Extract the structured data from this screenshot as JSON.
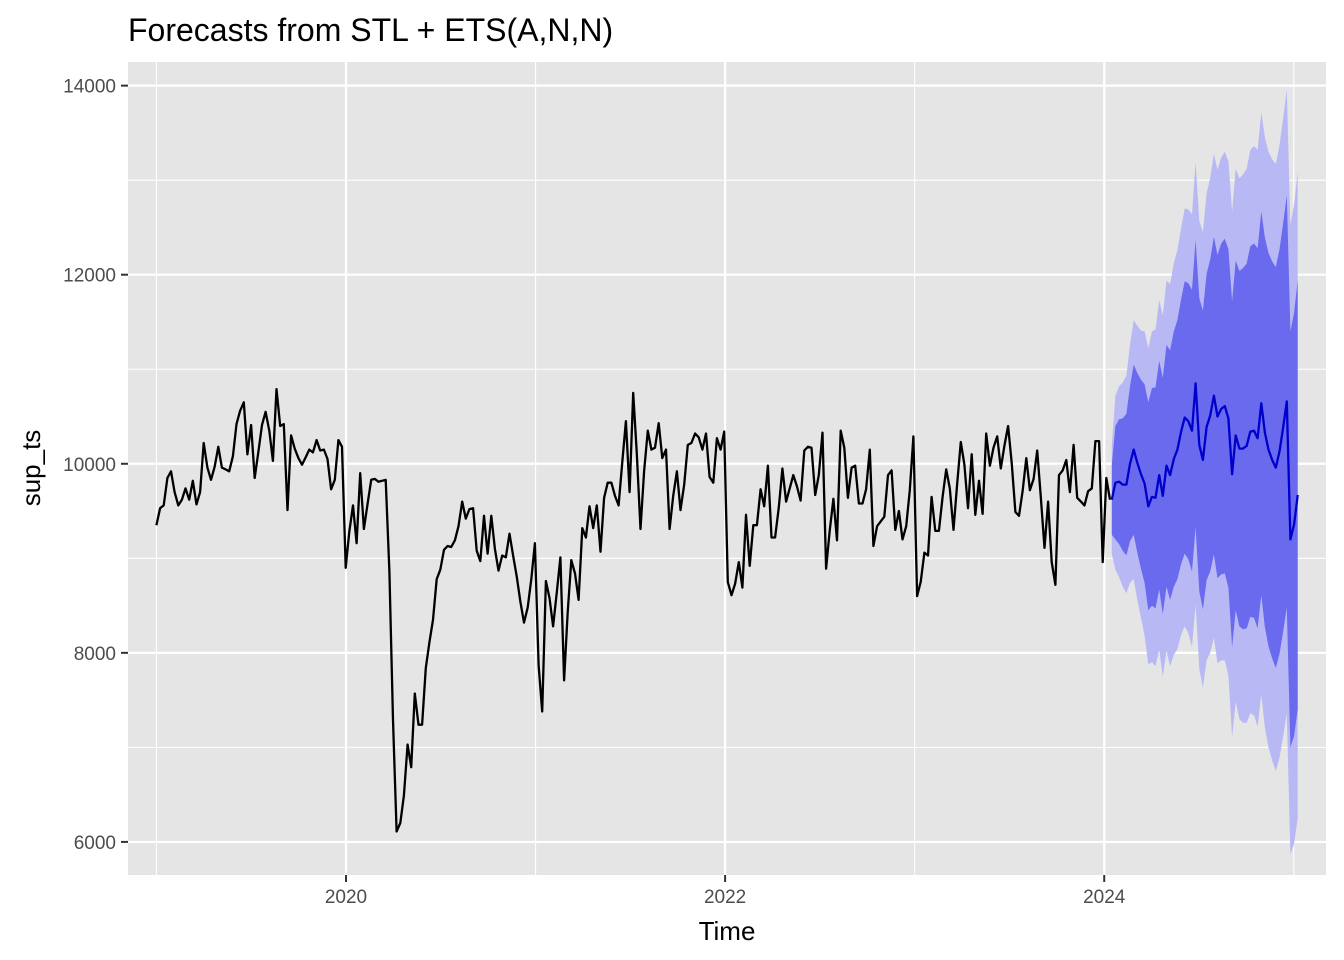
{
  "chart_data": {
    "type": "line",
    "title": "Forecasts from STL +  ETS(A,N,N)",
    "xlabel": "Time",
    "ylabel": "sup_ts",
    "xlim": [
      2018.85,
      2025.17
    ],
    "ylim": [
      5650,
      14250
    ],
    "x_ticks": [
      2020,
      2022,
      2024
    ],
    "x_tick_labels": [
      "2020",
      "2022",
      "2024"
    ],
    "x_minor": [
      2019,
      2021,
      2023,
      2025
    ],
    "y_ticks": [
      6000,
      8000,
      10000,
      12000,
      14000
    ],
    "y_tick_labels": [
      "6000",
      "8000",
      "10000",
      "12000",
      "14000"
    ],
    "y_minor": [
      7000,
      9000,
      11000,
      13000
    ],
    "grid": true,
    "colors": {
      "panel": "#e5e5e5",
      "grid": "#ffffff",
      "history": "#000000",
      "forecast": "#0000cc",
      "band80": "#6a6aee",
      "band95": "#b8b8f5"
    },
    "history": {
      "name": "observed",
      "start": 2019.0,
      "step": 0.0192,
      "values": [
        9350,
        9530,
        9560,
        9850,
        9920,
        9700,
        9560,
        9620,
        9740,
        9620,
        9820,
        9570,
        9700,
        10220,
        9960,
        9830,
        9970,
        10180,
        9960,
        9940,
        9920,
        10080,
        10420,
        10560,
        10650,
        10100,
        10410,
        9850,
        10120,
        10410,
        10550,
        10350,
        10030,
        10790,
        10400,
        10420,
        9510,
        10300,
        10160,
        10060,
        9990,
        10070,
        10150,
        10120,
        10250,
        10140,
        10150,
        10050,
        9730,
        9830,
        10250,
        10180,
        8900,
        9280,
        9560,
        9160,
        9900,
        9310,
        9570,
        9830,
        9840,
        9810,
        9820,
        9830,
        8860,
        7290,
        6110,
        6200,
        6490,
        7030,
        6790,
        7570,
        7240,
        7240,
        7840,
        8110,
        8350,
        8780,
        8880,
        9090,
        9130,
        9120,
        9190,
        9340,
        9600,
        9420,
        9520,
        9530,
        9080,
        8970,
        9450,
        9050,
        9450,
        9100,
        8870,
        9030,
        9010,
        9260,
        9030,
        8810,
        8540,
        8320,
        8480,
        8780,
        9160,
        7870,
        7380,
        8760,
        8580,
        8280,
        8640,
        9010,
        7710,
        8430,
        8980,
        8840,
        8560,
        9320,
        9220,
        9550,
        9320,
        9560,
        9070,
        9640,
        9800,
        9800,
        9660,
        9560,
        10020,
        10450,
        9700,
        10750,
        10110,
        9310,
        9920,
        10350,
        10150,
        10170,
        10430,
        10060,
        10150,
        9310,
        9660,
        9920,
        9510,
        9780,
        10200,
        10220,
        10320,
        10280,
        10150,
        10320,
        9860,
        9800,
        10270,
        10150,
        10340,
        8750,
        8610,
        8730,
        8960,
        8690,
        9460,
        8920,
        9350,
        9350,
        9730,
        9550,
        9980,
        9220,
        9220,
        9540,
        9950,
        9600,
        9740,
        9880,
        9760,
        9610,
        10140,
        10180,
        10170,
        9670,
        9880,
        10330,
        8890,
        9290,
        9630,
        9190,
        10350,
        10170,
        9640,
        9960,
        9980,
        9580,
        9580,
        9730,
        10150,
        9130,
        9340,
        9390,
        9440,
        9880,
        9930,
        9300,
        9500,
        9200,
        9340,
        9720,
        10290,
        8600,
        8750,
        9060,
        9030,
        9650,
        9290,
        9290,
        9650,
        9940,
        9740,
        9300,
        9780,
        10230,
        9990,
        9530,
        10100,
        9460,
        9820,
        9470,
        10320,
        9980,
        10170,
        10290,
        9950,
        10190,
        10400,
        10010,
        9490,
        9450,
        9710,
        10060,
        9720,
        9840,
        10140,
        9650,
        9110,
        9600,
        8960,
        8720,
        9880,
        9930,
        10040,
        9700,
        10200,
        9640,
        9600,
        9560,
        9710,
        9740,
        10240,
        10240,
        8960,
        9850,
        9620
      ]
    },
    "forecast": {
      "name": "forecast",
      "start": 2024.04,
      "step": 0.01923,
      "mean": [
        9620,
        9800,
        9810,
        9780,
        9780,
        10000,
        10150,
        10010,
        9890,
        9790,
        9550,
        9650,
        9640,
        9880,
        9660,
        9980,
        9880,
        10050,
        10150,
        10340,
        10490,
        10450,
        10350,
        10850,
        10200,
        10040,
        10390,
        10510,
        10720,
        10500,
        10580,
        10610,
        10480,
        9890,
        10300,
        10160,
        10160,
        10190,
        10340,
        10350,
        10270,
        10640,
        10330,
        10150,
        10040,
        9960,
        10130,
        10380,
        10660,
        9200,
        9360,
        9670
      ],
      "lo80": [
        9250,
        9200,
        9150,
        9080,
        9030,
        9180,
        9250,
        9060,
        8890,
        8740,
        8450,
        8500,
        8470,
        8670,
        8410,
        8700,
        8560,
        8700,
        8780,
        8940,
        9050,
        8990,
        8860,
        9330,
        8650,
        8460,
        8770,
        8860,
        9040,
        8790,
        8830,
        8840,
        8690,
        8060,
        8450,
        8280,
        8250,
        8260,
        8380,
        8370,
        8260,
        8610,
        8270,
        8070,
        7940,
        7840,
        7990,
        8220,
        8480,
        7000,
        7120,
        7400
      ],
      "hi80": [
        9990,
        10400,
        10470,
        10480,
        10530,
        10820,
        11050,
        10960,
        10890,
        10840,
        10650,
        10800,
        10810,
        11090,
        10910,
        11260,
        11200,
        11400,
        11520,
        11740,
        11930,
        11910,
        11840,
        12370,
        11750,
        11620,
        12010,
        12160,
        12400,
        12210,
        12330,
        12380,
        12270,
        11720,
        12150,
        12040,
        12070,
        12120,
        12300,
        12330,
        12280,
        12670,
        12390,
        12230,
        12140,
        12080,
        12270,
        12540,
        12840,
        11400,
        11600,
        11940
      ],
      "lo95": [
        9050,
        8880,
        8800,
        8700,
        8630,
        8740,
        8780,
        8560,
        8370,
        8180,
        7880,
        7900,
        7860,
        8030,
        7750,
        8020,
        7860,
        7980,
        8040,
        8190,
        8280,
        8210,
        8060,
        8510,
        7830,
        7630,
        7920,
        8000,
        8160,
        7890,
        7920,
        7920,
        7760,
        7110,
        7480,
        7300,
        7260,
        7260,
        7360,
        7340,
        7220,
        7560,
        7210,
        7000,
        6860,
        6750,
        6890,
        7110,
        7360,
        5870,
        5980,
        6250
      ],
      "hi95": [
        10190,
        10720,
        10820,
        10860,
        10930,
        11260,
        11520,
        11460,
        11410,
        11400,
        11220,
        11400,
        11420,
        11730,
        11570,
        11940,
        11900,
        12120,
        12260,
        12490,
        12700,
        12690,
        12640,
        13190,
        12570,
        12450,
        12860,
        13020,
        13280,
        13110,
        13240,
        13300,
        13200,
        12670,
        13120,
        13020,
        13060,
        13120,
        13320,
        13360,
        13320,
        13720,
        13450,
        13300,
        13220,
        13170,
        13370,
        13650,
        13960,
        12530,
        12740,
        13090
      ]
    }
  }
}
